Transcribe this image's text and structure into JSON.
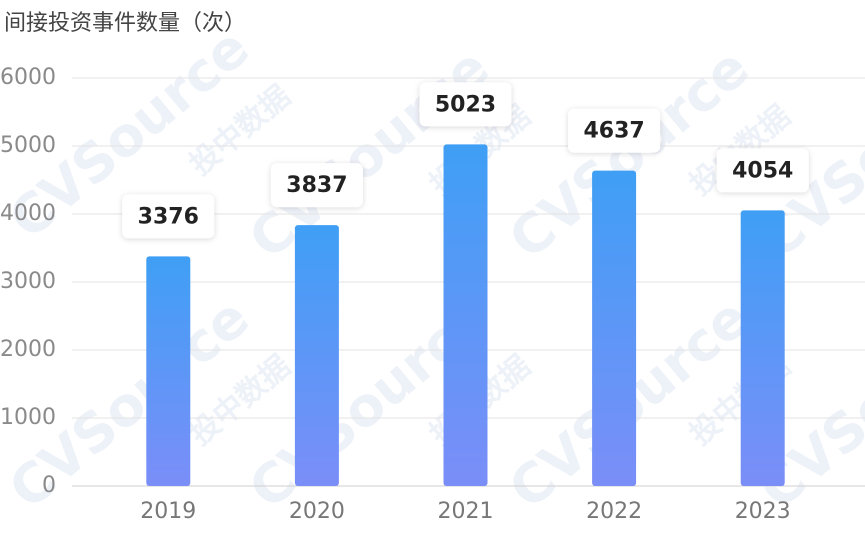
{
  "chart_data": {
    "type": "bar",
    "title": "间接投资事件数量（次）",
    "categories": [
      "2019",
      "2020",
      "2021",
      "2022",
      "2023"
    ],
    "values": [
      3376,
      3837,
      5023,
      4637,
      4054
    ],
    "gradient": [
      "#3f9ff5",
      "#7b8ef8"
    ],
    "ylim": [
      0,
      6000
    ],
    "yticks": [
      0,
      1000,
      2000,
      3000,
      4000,
      5000,
      6000
    ],
    "grid": true,
    "watermark": {
      "brand": "CVSource",
      "tagline": "投中数据"
    }
  }
}
